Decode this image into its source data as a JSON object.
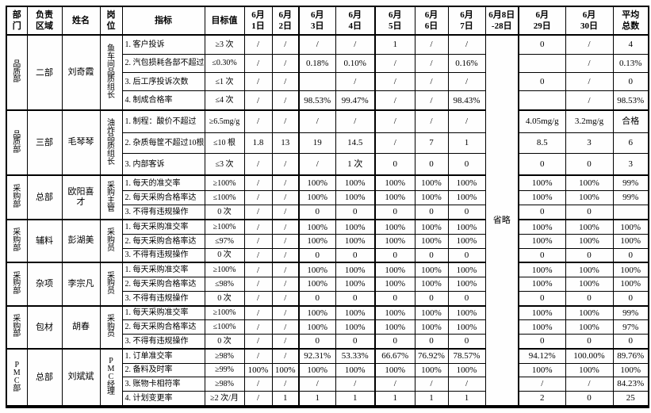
{
  "table": {
    "columns_display": [
      "部\n门",
      "负责\n区域",
      "姓名",
      "岗\n位",
      "指标",
      "目标值",
      "6月\n1日",
      "6月\n2日",
      "6月\n3日",
      "6月\n4日",
      "6月\n5日",
      "6月\n6日",
      "6月\n7日",
      "6月8日\n-28日",
      "6月\n29日",
      "6月\n30日",
      "平均\n总数"
    ],
    "omitted": "省略",
    "text_color": "#000000",
    "border_color": "#000000",
    "background_color": "#fefefe",
    "groups": [
      {
        "dept": "品质部",
        "area": "二部",
        "name": "刘奇霞",
        "position": "鱼车间品质组长",
        "rows": [
          {
            "indicator": "1. 客户投诉",
            "target": "≥3 次",
            "days": [
              "/",
              "/",
              "/",
              "/",
              "1",
              "/",
              "/"
            ],
            "d29": "0",
            "d30": "/",
            "avg": "4"
          },
          {
            "indicator": "2. 汽包损耗各部不超过",
            "target": "≤0.30%",
            "days": [
              "/",
              "/",
              "0.18%",
              "0.10%",
              "/",
              "/",
              "0.16%"
            ],
            "d29": "",
            "d30": "/",
            "avg": "0.13%"
          },
          {
            "indicator": "3. 后工序投诉次数",
            "target": "≤1 次",
            "days": [
              "/",
              "/",
              "",
              "/",
              "/",
              "/",
              "/"
            ],
            "d29": "0",
            "d30": "/",
            "avg": "0"
          },
          {
            "indicator": "4. 制成合格率",
            "target": "≤4 次",
            "days": [
              "/",
              "/",
              "98.53%",
              "99.47%",
              "/",
              "/",
              "98.43%"
            ],
            "d29": "",
            "d30": "/",
            "avg": "98.53%"
          }
        ]
      },
      {
        "dept": "品质部",
        "area": "三部",
        "name": "毛琴琴",
        "position": "油炸品质组长",
        "rows": [
          {
            "indicator": "1. 制程：酸价不超过",
            "target": "≥6.5mg/g",
            "days": [
              "/",
              "/",
              "/",
              "/",
              "/",
              "/",
              "/"
            ],
            "d29": "4.05mg/g",
            "d30": "3.2mg/g",
            "avg": "合格"
          },
          {
            "indicator": "2. 杂质每筐不超过10根",
            "target": "≤10 根",
            "days": [
              "1.8",
              "13",
              "19",
              "14.5",
              "/",
              "7",
              "1"
            ],
            "d29": "8.5",
            "d30": "3",
            "avg": "6"
          },
          {
            "indicator": "3. 内部客诉",
            "target": "≤3 次",
            "days": [
              "/",
              "/",
              "/",
              "1 次",
              "0",
              "0",
              "0"
            ],
            "d29": "0",
            "d30": "0",
            "avg": "3"
          }
        ]
      },
      {
        "dept": "采购部",
        "area": "总部",
        "name": "欧阳喜才",
        "position": "采购主管",
        "rows": [
          {
            "indicator": "1. 每天的准交率",
            "target": "≥100%",
            "days": [
              "/",
              "/",
              "100%",
              "100%",
              "100%",
              "100%",
              "100%"
            ],
            "d29": "100%",
            "d30": "100%",
            "avg": "99%"
          },
          {
            "indicator": "2. 每天采购合格率达",
            "target": "≤100%",
            "days": [
              "/",
              "/",
              "100%",
              "100%",
              "100%",
              "100%",
              "100%"
            ],
            "d29": "100%",
            "d30": "100%",
            "avg": "99%"
          },
          {
            "indicator": "3. 不得有违规操作",
            "target": "0 次",
            "days": [
              "/",
              "/",
              "0",
              "0",
              "0",
              "0",
              "0"
            ],
            "d29": "0",
            "d30": "0",
            "avg": ""
          }
        ]
      },
      {
        "dept": "采购部",
        "area": "辅料",
        "name": "彭湖美",
        "position": "采购员",
        "rows": [
          {
            "indicator": "1. 每天采购准交率",
            "target": "≥100%",
            "days": [
              "/",
              "/",
              "100%",
              "100%",
              "100%",
              "100%",
              "100%"
            ],
            "d29": "100%",
            "d30": "100%",
            "avg": "100%"
          },
          {
            "indicator": "2. 每天采购合格率达",
            "target": "≤97%",
            "days": [
              "/",
              "/",
              "100%",
              "100%",
              "100%",
              "100%",
              "100%"
            ],
            "d29": "100%",
            "d30": "100%",
            "avg": "100%"
          },
          {
            "indicator": "3. 不得有违规操作",
            "target": "0 次",
            "days": [
              "/",
              "/",
              "0",
              "0",
              "0",
              "0",
              "0"
            ],
            "d29": "0",
            "d30": "0",
            "avg": "0"
          }
        ]
      },
      {
        "dept": "采购部",
        "area": "杂项",
        "name": "李宗凡",
        "position": "采购员",
        "rows": [
          {
            "indicator": "1. 每天采购准交率",
            "target": "≥100%",
            "days": [
              "/",
              "/",
              "100%",
              "100%",
              "100%",
              "100%",
              "100%"
            ],
            "d29": "100%",
            "d30": "100%",
            "avg": "100%"
          },
          {
            "indicator": "2. 每天采购合格率达",
            "target": "≤98%",
            "days": [
              "/",
              "/",
              "100%",
              "100%",
              "100%",
              "100%",
              "100%"
            ],
            "d29": "100%",
            "d30": "100%",
            "avg": "100%"
          },
          {
            "indicator": "3. 不得有违规操作",
            "target": "0 次",
            "days": [
              "/",
              "/",
              "0",
              "0",
              "0",
              "0",
              "0"
            ],
            "d29": "0",
            "d30": "0",
            "avg": "0"
          }
        ]
      },
      {
        "dept": "采购部",
        "area": "包材",
        "name": "胡春",
        "position": "采购员",
        "rows": [
          {
            "indicator": "1. 每天采购准交率",
            "target": "≥100%",
            "days": [
              "/",
              "/",
              "100%",
              "100%",
              "100%",
              "100%",
              "100%"
            ],
            "d29": "100%",
            "d30": "100%",
            "avg": "99%"
          },
          {
            "indicator": "2. 每天采购合格率达",
            "target": "≤100%",
            "days": [
              "/",
              "/",
              "100%",
              "100%",
              "100%",
              "100%",
              "100%"
            ],
            "d29": "100%",
            "d30": "100%",
            "avg": "97%"
          },
          {
            "indicator": "3. 不得有违规操作",
            "target": "0 次",
            "days": [
              "/",
              "/",
              "0",
              "0",
              "0",
              "0",
              "0"
            ],
            "d29": "0",
            "d30": "0",
            "avg": "0"
          }
        ]
      },
      {
        "dept": "PMC部",
        "area": "总部",
        "name": "刘斌斌",
        "position": "PMC经理",
        "rows": [
          {
            "indicator": "1. 订单准交率",
            "target": "≥98%",
            "days": [
              "/",
              "/",
              "92.31%",
              "53.33%",
              "66.67%",
              "76.92%",
              "78.57%"
            ],
            "d29": "94.12%",
            "d30": "100.00%",
            "avg": "89.76%"
          },
          {
            "indicator": "2. 备料及时率",
            "target": "≥99%",
            "days": [
              "100%",
              "100%",
              "100%",
              "100%",
              "100%",
              "100%",
              "100%"
            ],
            "d29": "100%",
            "d30": "100%",
            "avg": "100%"
          },
          {
            "indicator": "3. 账物卡相符率",
            "target": "≥98%",
            "days": [
              "/",
              "/",
              "/",
              "/",
              "/",
              "/",
              "/"
            ],
            "d29": "/",
            "d30": "/",
            "avg": "84.23%"
          },
          {
            "indicator": "4. 计划变更率",
            "target": "≥2 次/月",
            "days": [
              "/",
              "1",
              "1",
              "1",
              "1",
              "1",
              "1"
            ],
            "d29": "2",
            "d30": "0",
            "avg": "25"
          }
        ]
      }
    ]
  }
}
